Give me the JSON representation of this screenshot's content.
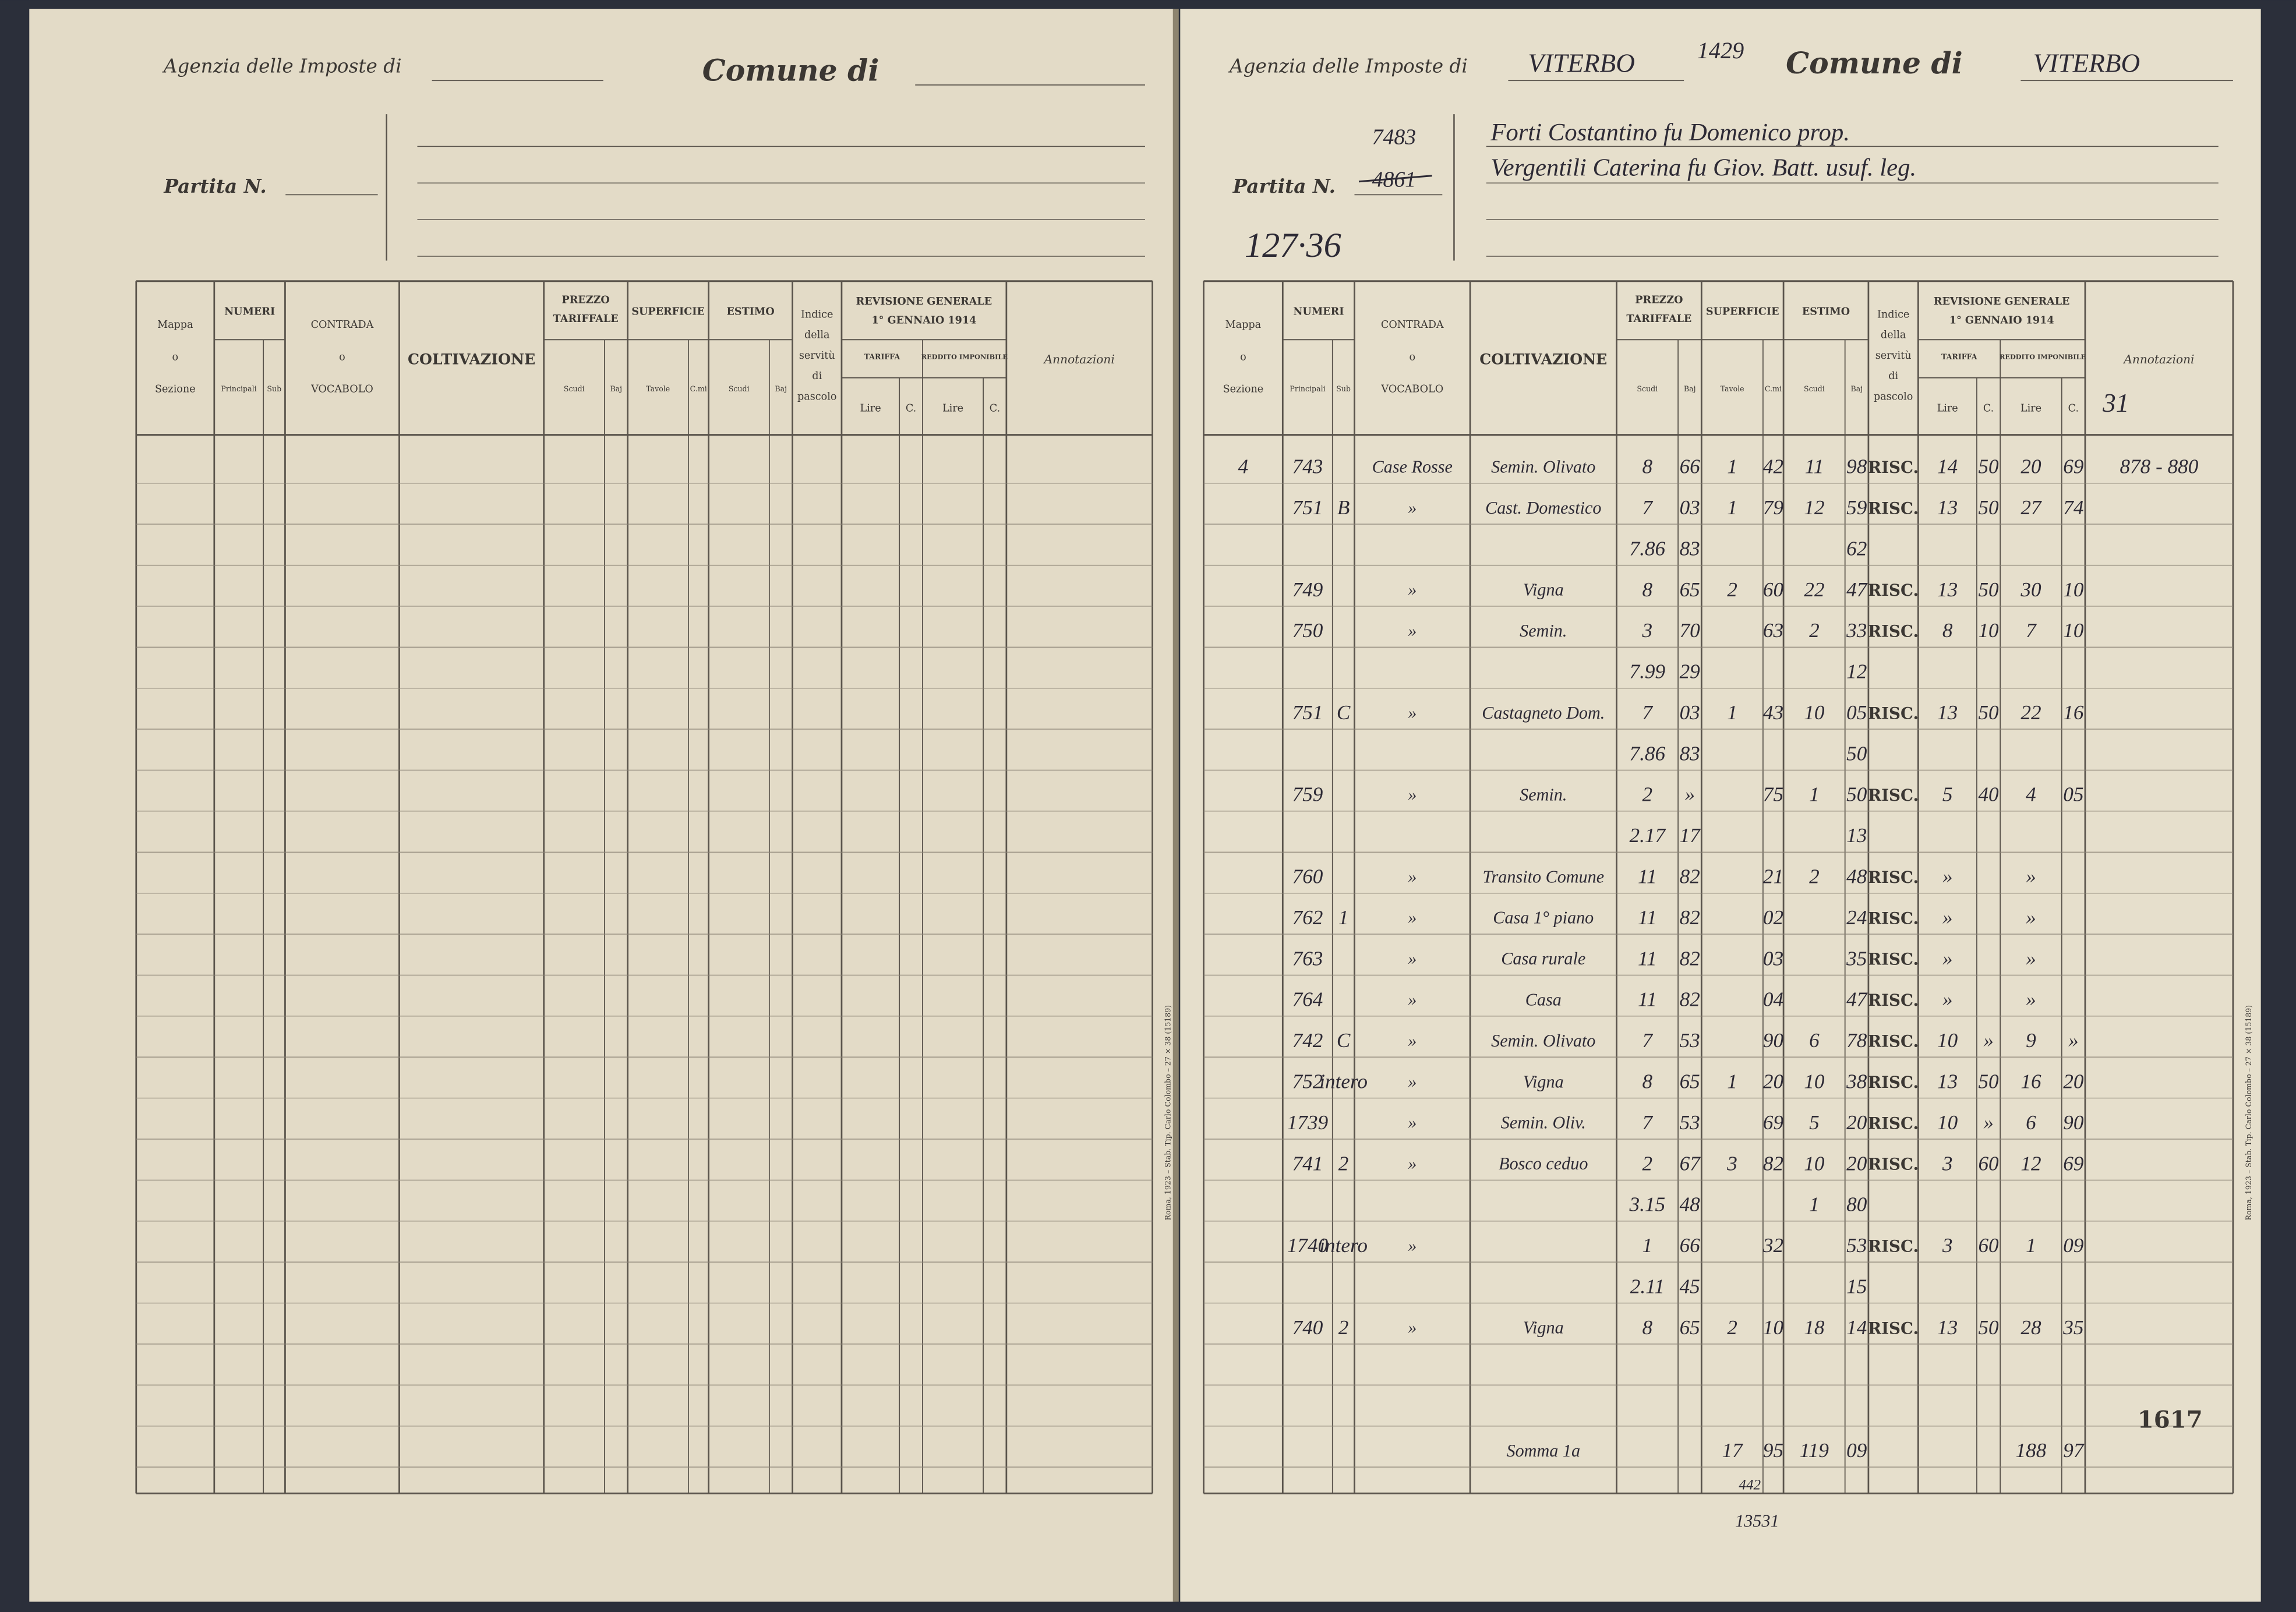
{
  "header_labels": {
    "agenzia": "Agenzia delle Imposte di",
    "comune": "Comune di",
    "partita": "Partita N."
  },
  "column_headers": {
    "mappa": [
      "Mappa",
      "o",
      "Sezione"
    ],
    "numeri": "NUMERI",
    "principali": "Principali",
    "sub": "Sub",
    "contrada": [
      "CONTRADA",
      "o",
      "VOCABOLO"
    ],
    "coltivazione": "COLTIVAZIONE",
    "prezzo": [
      "PREZZO",
      "TARIFFALE"
    ],
    "superficie": "SUPERFICIE",
    "estimo": "ESTIMO",
    "scudi": "Scudi",
    "baj": "Baj",
    "tavole": "Tavole",
    "cmi": "C.mi",
    "indice": [
      "Indice",
      "della",
      "servitù",
      "di",
      "pascolo"
    ],
    "revisione": [
      "REVISIONE GENERALE",
      "1° GENNAIO 1914"
    ],
    "tariffa": "TARIFFA",
    "reddito": "REDDITO IMPONIBILE",
    "lire": "Lire",
    "cent": "C.",
    "annotazioni": "Annotazioni"
  },
  "imprint": "Roma, 1923 – Stab. Tip. Carlo Colombo – 27 × 38 (15189)",
  "right_page": {
    "agenzia_value": "VITERBO",
    "number": "1429",
    "comune_value": "VITERBO",
    "partita_new": "7483",
    "partita_old": "4861",
    "note": "127·36",
    "owners": [
      "Forti Costantino fu Domenico prop.",
      "Vergentili Caterina fu Giov. Batt. usuf. leg."
    ],
    "annotation_header": "31",
    "rows": [
      [
        "4",
        "743",
        null,
        "Case Rosse",
        "Semin. Olivato",
        "8",
        "66",
        "1",
        "42",
        "11",
        "98",
        "RISC.",
        "14",
        "50",
        "20",
        "69",
        "878 - 880"
      ],
      [
        null,
        "751",
        "B",
        "»",
        "Cast. Domestico",
        "7",
        "03",
        "1",
        "79",
        "12",
        "59",
        "RISC.",
        "13",
        "50",
        "27",
        "74",
        null
      ],
      [
        null,
        null,
        null,
        null,
        null,
        "7.86",
        "83",
        null,
        null,
        null,
        "62",
        null,
        null,
        null,
        null,
        null,
        null
      ],
      [
        null,
        "749",
        null,
        "»",
        "Vigna",
        "8",
        "65",
        "2",
        "60",
        "22",
        "47",
        "RISC.",
        "13",
        "50",
        "30",
        "10",
        null
      ],
      [
        null,
        "750",
        null,
        "»",
        "Semin.",
        "3",
        "70",
        null,
        "63",
        "2",
        "33",
        "RISC.",
        "8",
        "10",
        "7",
        "10",
        null
      ],
      [
        null,
        null,
        null,
        null,
        null,
        "7.99",
        "29",
        null,
        null,
        null,
        "12",
        null,
        null,
        null,
        null,
        null,
        null
      ],
      [
        null,
        "751",
        "C",
        "»",
        "Castagneto Dom.",
        "7",
        "03",
        "1",
        "43",
        "10",
        "05",
        "RISC.",
        "13",
        "50",
        "22",
        "16",
        null
      ],
      [
        null,
        null,
        null,
        null,
        null,
        "7.86",
        "83",
        null,
        null,
        null,
        "50",
        null,
        null,
        null,
        null,
        null,
        null
      ],
      [
        null,
        "759",
        null,
        "»",
        "Semin.",
        "2",
        "»",
        null,
        "75",
        "1",
        "50",
        "RISC.",
        "5",
        "40",
        "4",
        "05",
        null
      ],
      [
        null,
        null,
        null,
        null,
        null,
        "2.17",
        "17",
        null,
        null,
        null,
        "13",
        null,
        null,
        null,
        null,
        null,
        null
      ],
      [
        null,
        "760",
        null,
        "»",
        "Transito Comune",
        "11",
        "82",
        null,
        "21",
        "2",
        "48",
        "RISC.",
        "»",
        null,
        "»",
        null,
        null
      ],
      [
        null,
        "762",
        "1",
        "»",
        "Casa 1° piano",
        "11",
        "82",
        null,
        "02",
        null,
        "24",
        "RISC.",
        "»",
        null,
        "»",
        null,
        null
      ],
      [
        null,
        "763",
        null,
        "»",
        "Casa rurale",
        "11",
        "82",
        null,
        "03",
        null,
        "35",
        "RISC.",
        "»",
        null,
        "»",
        null,
        null
      ],
      [
        null,
        "764",
        null,
        "»",
        "Casa",
        "11",
        "82",
        null,
        "04",
        null,
        "47",
        "RISC.",
        "»",
        null,
        "»",
        null,
        null
      ],
      [
        null,
        "742",
        "C",
        "»",
        "Semin. Olivato",
        "7",
        "53",
        null,
        "90",
        "6",
        "78",
        "RISC.",
        "10",
        "»",
        "9",
        "»",
        null
      ],
      [
        null,
        "752",
        "intero",
        "»",
        "Vigna",
        "8",
        "65",
        "1",
        "20",
        "10",
        "38",
        "RISC.",
        "13",
        "50",
        "16",
        "20",
        null
      ],
      [
        null,
        "1739",
        null,
        "»",
        "Semin. Oliv.",
        "7",
        "53",
        null,
        "69",
        "5",
        "20",
        "RISC.",
        "10",
        "»",
        "6",
        "90",
        null
      ],
      [
        null,
        "741",
        "2",
        "»",
        "Bosco ceduo",
        "2",
        "67",
        "3",
        "82",
        "10",
        "20",
        "RISC.",
        "3",
        "60",
        "12",
        "69",
        null
      ],
      [
        null,
        null,
        null,
        null,
        null,
        "3.15",
        "48",
        null,
        null,
        "1",
        "80",
        null,
        null,
        null,
        null,
        null,
        null
      ],
      [
        null,
        "1740",
        "intero",
        "»",
        null,
        "1",
        "66",
        null,
        "32",
        null,
        "53",
        "RISC.",
        "3",
        "60",
        "1",
        "09",
        null
      ],
      [
        null,
        null,
        null,
        null,
        null,
        "2.11",
        "45",
        null,
        null,
        null,
        "15",
        null,
        null,
        null,
        null,
        null,
        null
      ],
      [
        null,
        "740",
        "2",
        "»",
        "Vigna",
        "8",
        "65",
        "2",
        "10",
        "18",
        "14",
        "RISC.",
        "13",
        "50",
        "28",
        "35",
        null
      ],
      null,
      null,
      [
        null,
        null,
        null,
        null,
        "Somma 1a",
        null,
        null,
        "17",
        "95",
        "119",
        "09",
        null,
        null,
        null,
        "188",
        "97",
        null
      ]
    ],
    "page_number": "1617",
    "below_small": "442",
    "below_total": "13531"
  }
}
